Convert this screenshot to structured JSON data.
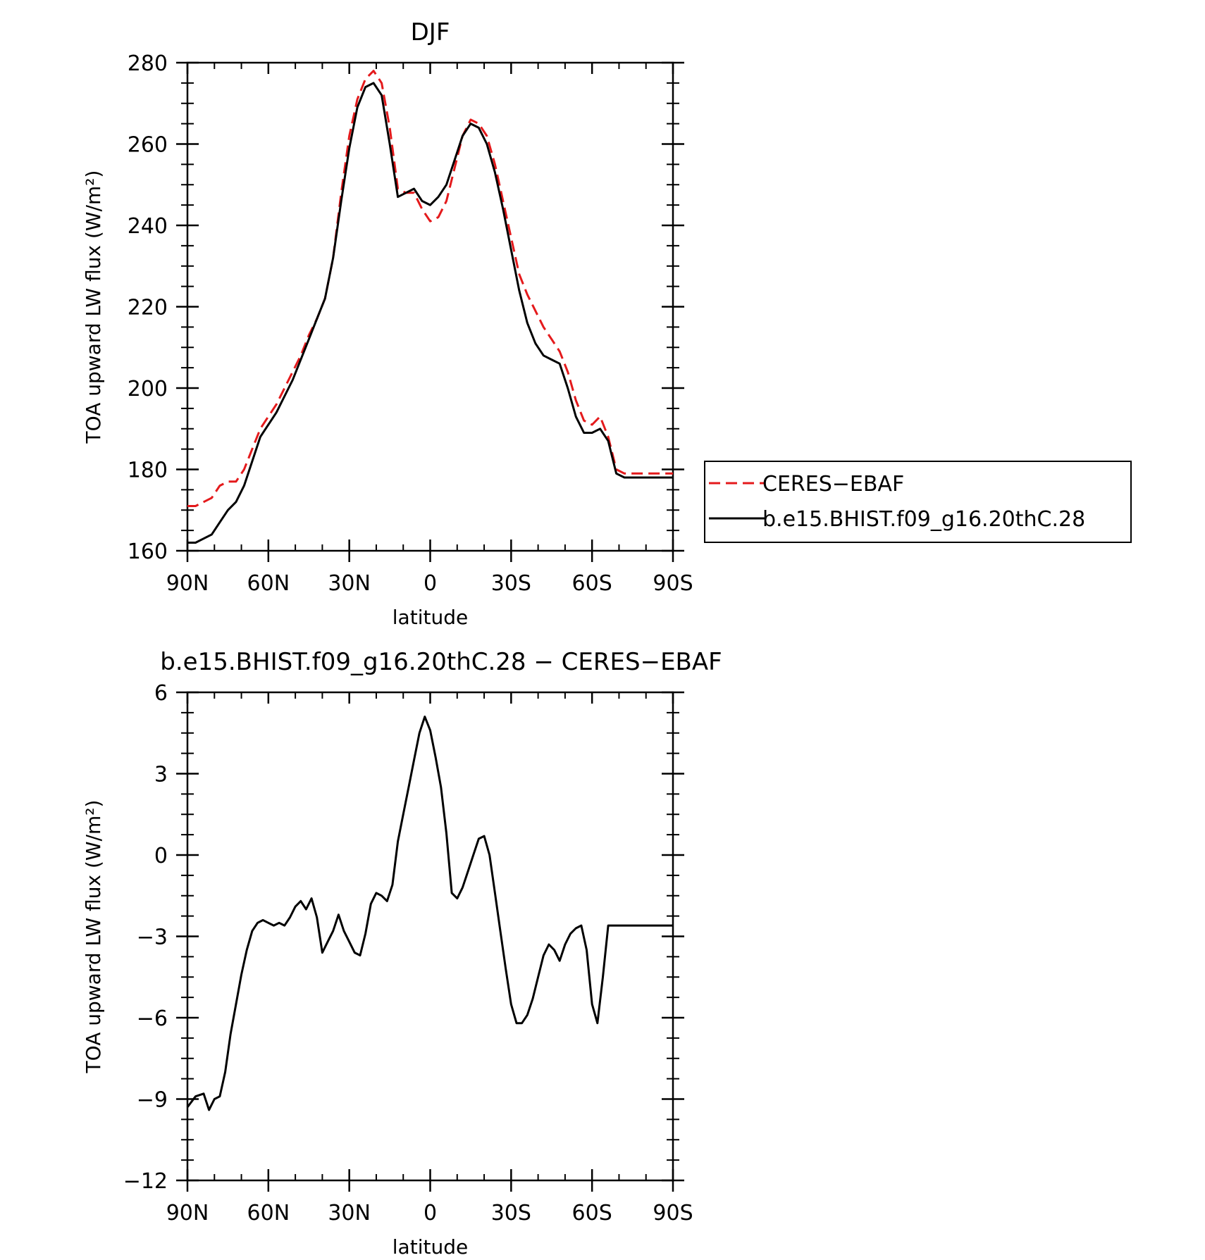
{
  "chart_data": [
    {
      "type": "line",
      "title": "DJF",
      "xlabel": "latitude",
      "ylabel": "TOA upward LW flux (W/m²)",
      "xlim": [
        90,
        -90
      ],
      "ylim": [
        160,
        280
      ],
      "xticks": [
        90,
        60,
        30,
        0,
        -30,
        -60,
        -90
      ],
      "xtick_labels": [
        "90N",
        "60N",
        "30N",
        "0",
        "30S",
        "60S",
        "90S"
      ],
      "yticks": [
        160,
        180,
        200,
        220,
        240,
        260,
        280
      ],
      "ytick_labels": [
        "160",
        "180",
        "200",
        "220",
        "240",
        "260",
        "280"
      ],
      "legend": {
        "placement": "right",
        "entries": [
          "CERES−EBAF",
          "b.e15.BHIST.f09_g16.20thC.28"
        ]
      },
      "series": [
        {
          "name": "CERES−EBAF",
          "color": "#e41a1c",
          "dash": "dashed",
          "x": [
            90,
            87,
            84,
            81,
            78,
            75,
            72,
            69,
            66,
            63,
            60,
            57,
            54,
            51,
            48,
            45,
            42,
            39,
            36,
            33,
            30,
            27,
            24,
            21,
            18,
            15,
            12,
            9,
            6,
            3,
            0,
            -3,
            -6,
            -9,
            -12,
            -15,
            -18,
            -21,
            -24,
            -27,
            -30,
            -33,
            -36,
            -39,
            -42,
            -45,
            -48,
            -51,
            -54,
            -57,
            -60,
            -63,
            -66,
            -69,
            -72,
            -75,
            -78,
            -81,
            -84,
            -87,
            -90
          ],
          "y": [
            171,
            171,
            172,
            173,
            176,
            177,
            177,
            180,
            185,
            190,
            193,
            196,
            200,
            204,
            208,
            213,
            217,
            222,
            232,
            248,
            262,
            271,
            276,
            278,
            275,
            264,
            249,
            248,
            248,
            244,
            241,
            242,
            246,
            254,
            262,
            266,
            265,
            262,
            255,
            246,
            237,
            228,
            223,
            219,
            215,
            212,
            209,
            204,
            197,
            192,
            191,
            193,
            188,
            180,
            179,
            179,
            179,
            179,
            179,
            179,
            179
          ]
        },
        {
          "name": "b.e15.BHIST.f09_g16.20thC.28",
          "color": "#000000",
          "dash": "solid",
          "x": [
            90,
            87,
            84,
            81,
            78,
            75,
            72,
            69,
            66,
            63,
            60,
            57,
            54,
            51,
            48,
            45,
            42,
            39,
            36,
            33,
            30,
            27,
            24,
            21,
            18,
            15,
            12,
            9,
            6,
            3,
            0,
            -3,
            -6,
            -9,
            -12,
            -15,
            -18,
            -21,
            -24,
            -27,
            -30,
            -33,
            -36,
            -39,
            -42,
            -45,
            -48,
            -51,
            -54,
            -57,
            -60,
            -63,
            -66,
            -69,
            -72,
            -75,
            -78,
            -81,
            -84,
            -87,
            -90
          ],
          "y": [
            162,
            162,
            163,
            164,
            167,
            170,
            172,
            176,
            182,
            188,
            191,
            194,
            198,
            202,
            207,
            212,
            217,
            222,
            232,
            246,
            259,
            269,
            274,
            275,
            272,
            260,
            247,
            248,
            249,
            246,
            245,
            247,
            250,
            256,
            262,
            265,
            264,
            260,
            253,
            244,
            234,
            224,
            216,
            211,
            208,
            207,
            206,
            200,
            193,
            189,
            189,
            190,
            187,
            179,
            178,
            178,
            178,
            178,
            178,
            178,
            178
          ]
        }
      ]
    },
    {
      "type": "line",
      "title": "b.e15.BHIST.f09_g16.20thC.28 − CERES−EBAF",
      "xlabel": "latitude",
      "ylabel": "TOA upward LW flux (W/m²)",
      "xlim": [
        90,
        -90
      ],
      "ylim": [
        -12,
        6
      ],
      "xticks": [
        90,
        60,
        30,
        0,
        -30,
        -60,
        -90
      ],
      "xtick_labels": [
        "90N",
        "60N",
        "30N",
        "0",
        "30S",
        "60S",
        "90S"
      ],
      "yticks": [
        -12,
        -9,
        -6,
        -3,
        0,
        3,
        6
      ],
      "ytick_labels": [
        "−12",
        "−9",
        "−6",
        "−3",
        "0",
        "3",
        "6"
      ],
      "series": [
        {
          "color": "#000000",
          "dash": "solid",
          "x": [
            90,
            87,
            84,
            82,
            80,
            78,
            76,
            74,
            72,
            70,
            68,
            66,
            64,
            62,
            60,
            58,
            56,
            54,
            52,
            50,
            48,
            46,
            44,
            42,
            40,
            38,
            36,
            34,
            32,
            30,
            28,
            26,
            24,
            22,
            20,
            18,
            16,
            14,
            12,
            10,
            8,
            6,
            4,
            2,
            0,
            -2,
            -4,
            -6,
            -8,
            -10,
            -12,
            -14,
            -16,
            -18,
            -20,
            -22,
            -24,
            -26,
            -28,
            -30,
            -32,
            -34,
            -36,
            -38,
            -40,
            -42,
            -44,
            -46,
            -48,
            -50,
            -52,
            -54,
            -56,
            -58,
            -60,
            -62,
            -64,
            -66,
            -68,
            -70,
            -72,
            -74,
            -76,
            -78,
            -80,
            -82,
            -84,
            -86,
            -88,
            -90
          ],
          "y": [
            -9.3,
            -8.9,
            -8.8,
            -9.4,
            -9.0,
            -8.9,
            -8.0,
            -6.6,
            -5.5,
            -4.4,
            -3.5,
            -2.8,
            -2.5,
            -2.4,
            -2.5,
            -2.6,
            -2.5,
            -2.6,
            -2.3,
            -1.9,
            -1.7,
            -2.0,
            -1.6,
            -2.3,
            -3.6,
            -3.2,
            -2.8,
            -2.2,
            -2.8,
            -3.2,
            -3.6,
            -3.7,
            -2.9,
            -1.8,
            -1.4,
            -1.5,
            -1.7,
            -1.1,
            0.5,
            1.5,
            2.5,
            3.5,
            4.5,
            5.1,
            4.6,
            3.6,
            2.5,
            0.8,
            -1.4,
            -1.6,
            -1.2,
            -0.6,
            0.0,
            0.6,
            0.7,
            0.0,
            -1.4,
            -2.8,
            -4.2,
            -5.5,
            -6.2,
            -6.2,
            -5.9,
            -5.3,
            -4.5,
            -3.7,
            -3.3,
            -3.5,
            -3.9,
            -3.3,
            -2.9,
            -2.7,
            -2.6,
            -3.5,
            -5.5,
            -6.2,
            -4.5,
            -2.6,
            -2.6,
            -2.6,
            -2.6,
            -2.6,
            -2.6,
            -2.6,
            -2.6,
            -2.6,
            -2.6,
            -2.6,
            -2.6,
            -2.6
          ]
        }
      ]
    }
  ]
}
